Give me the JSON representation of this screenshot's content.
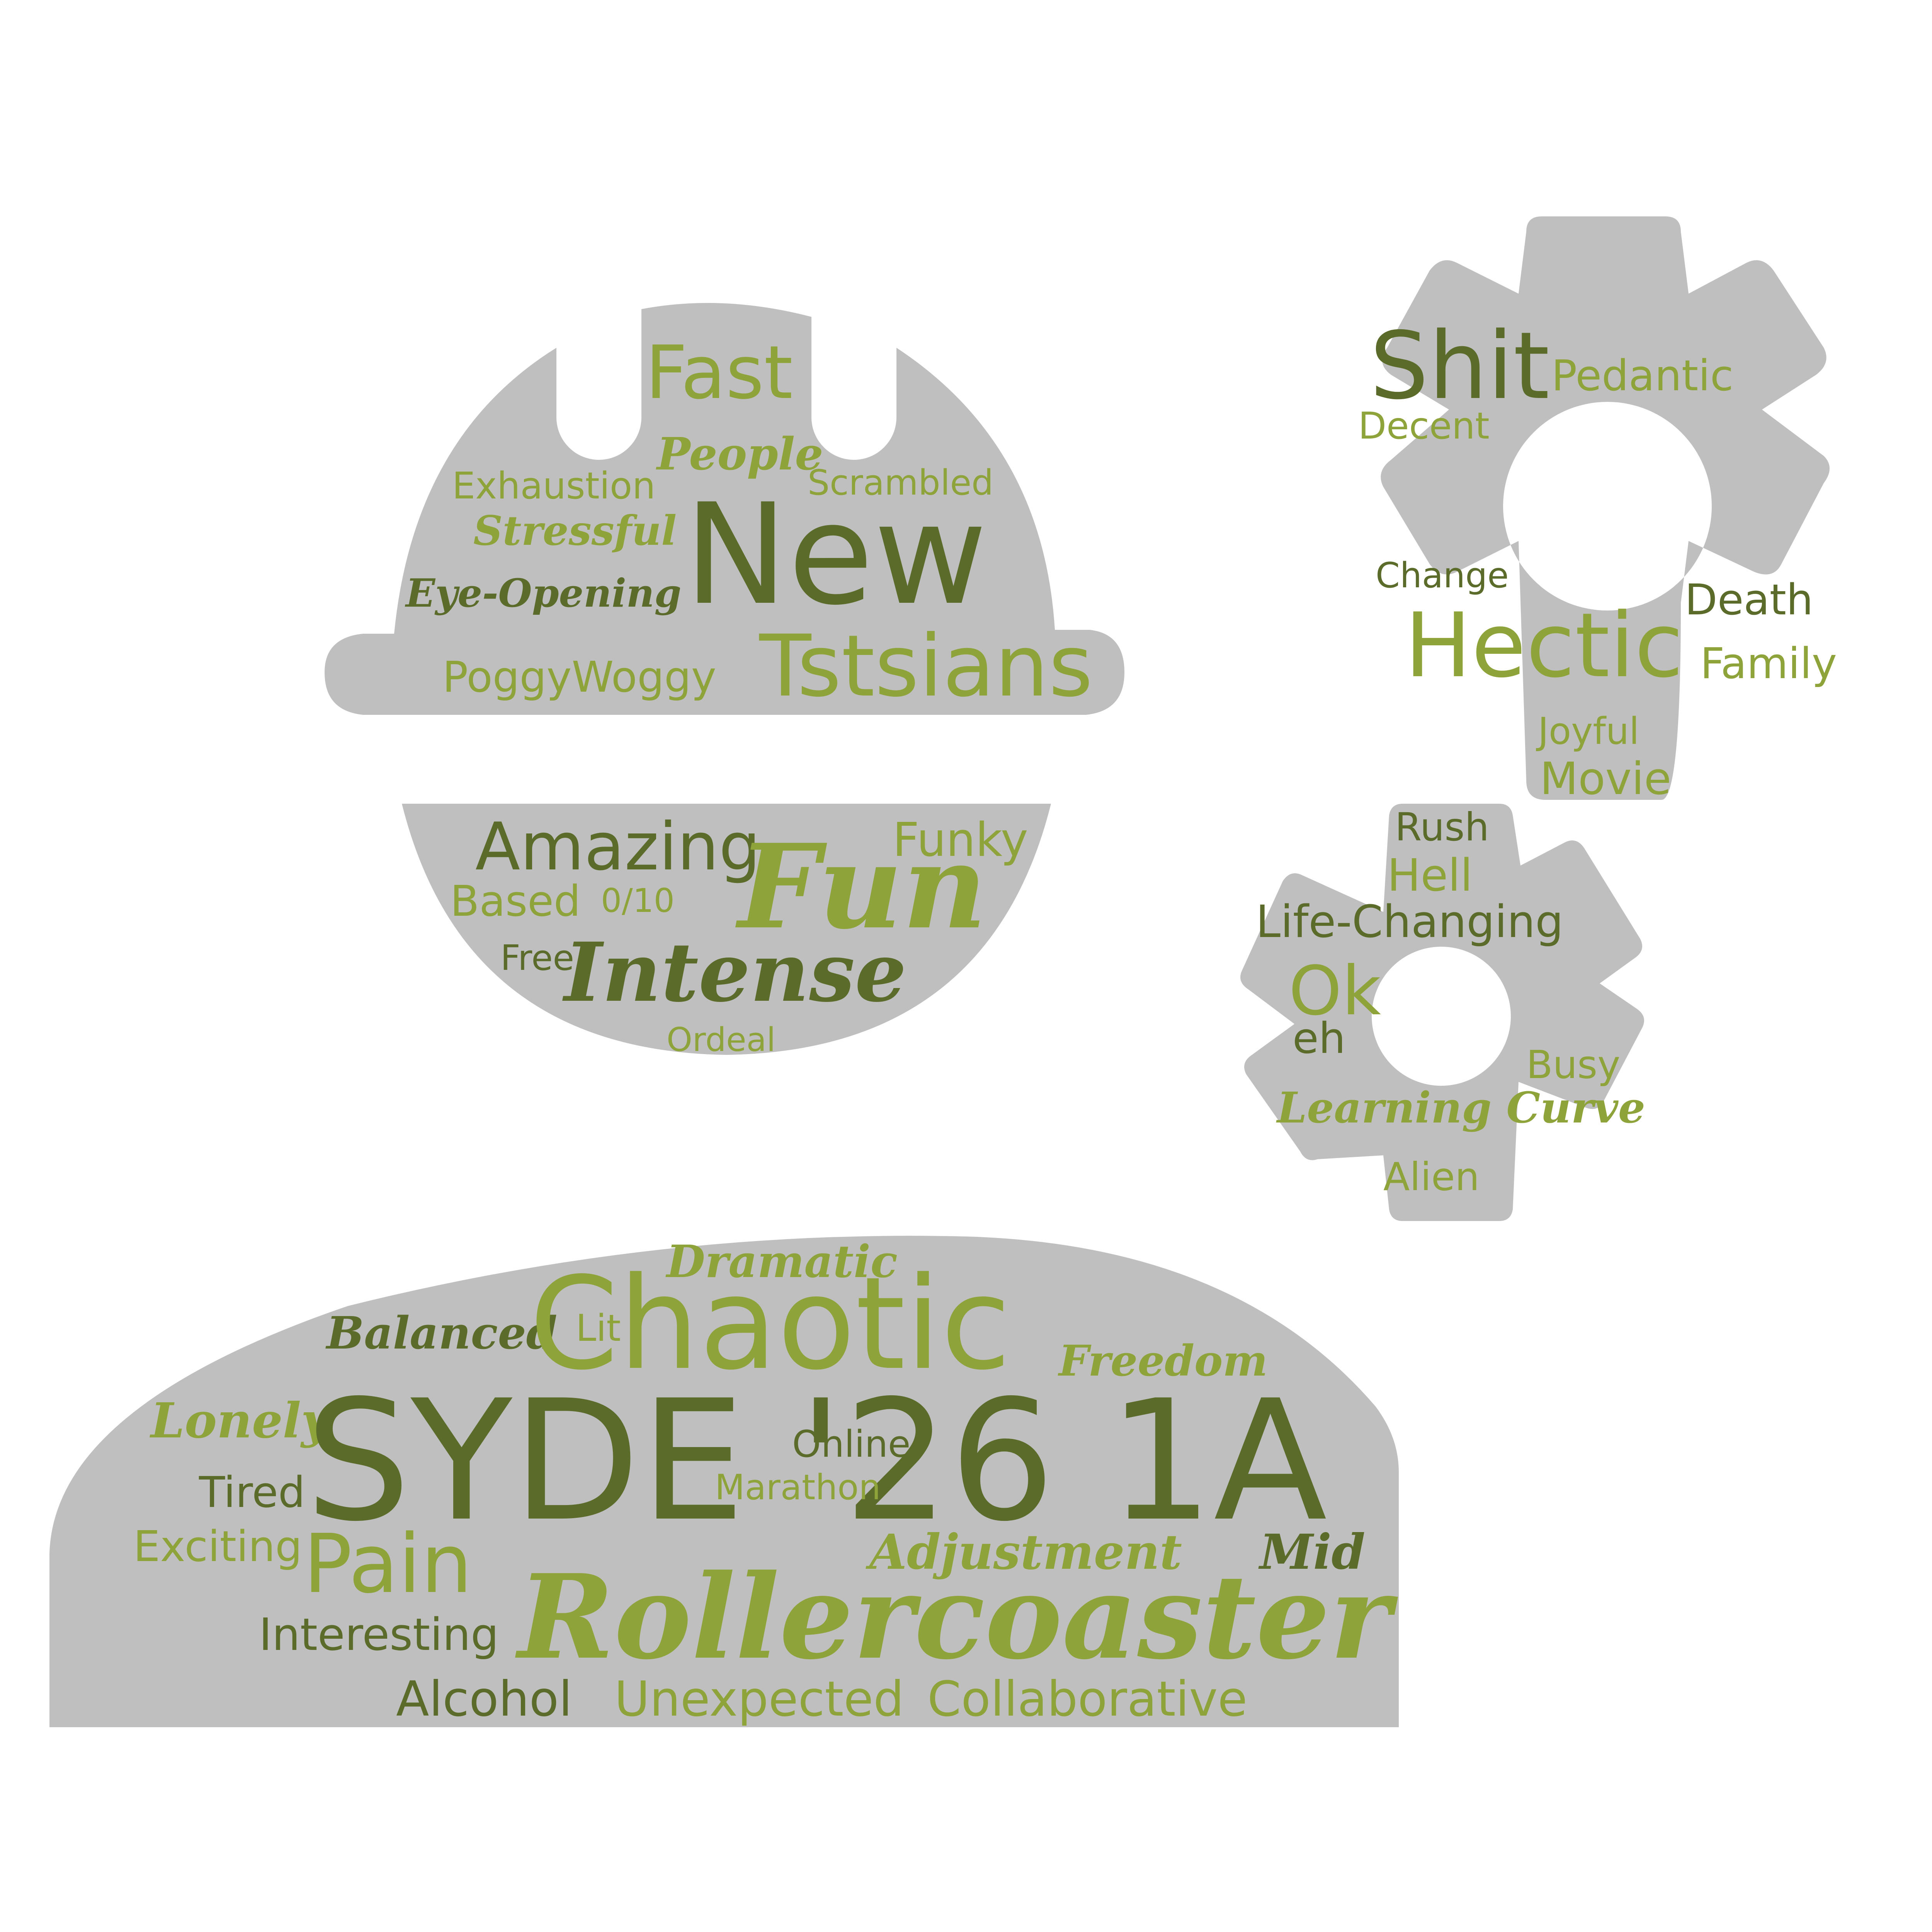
{
  "colors": {
    "background": "#ffffff",
    "shape": "#bfbfbf",
    "dark_green": "#5a6b2a",
    "light_green": "#8ea33a"
  },
  "clouds": {
    "helmet": {
      "words": [
        {
          "text": "Fast",
          "tone": "light",
          "style": "sans"
        },
        {
          "text": "People",
          "tone": "light",
          "style": "script"
        },
        {
          "text": "Exhaustion",
          "tone": "light",
          "style": "sans"
        },
        {
          "text": "Scrambled",
          "tone": "light",
          "style": "sans"
        },
        {
          "text": "Stressful",
          "tone": "light",
          "style": "script"
        },
        {
          "text": "New",
          "tone": "dark",
          "style": "sans"
        },
        {
          "text": "Eye-Opening",
          "tone": "dark",
          "style": "script"
        },
        {
          "text": "PoggyWoggy",
          "tone": "light",
          "style": "sans"
        },
        {
          "text": "Tstsians",
          "tone": "light",
          "style": "sans"
        }
      ]
    },
    "bowl": {
      "words": [
        {
          "text": "Amazing",
          "tone": "dark",
          "style": "sans"
        },
        {
          "text": "Fun",
          "tone": "light",
          "style": "script"
        },
        {
          "text": "Funky",
          "tone": "light",
          "style": "sans"
        },
        {
          "text": "Based",
          "tone": "light",
          "style": "sans"
        },
        {
          "text": "0/10",
          "tone": "light",
          "style": "sans"
        },
        {
          "text": "Free",
          "tone": "dark",
          "style": "sans"
        },
        {
          "text": "Intense",
          "tone": "dark",
          "style": "script"
        },
        {
          "text": "Ordeal",
          "tone": "light",
          "style": "sans"
        }
      ]
    },
    "gear_large": {
      "words": [
        {
          "text": "Shit",
          "tone": "dark",
          "style": "sans"
        },
        {
          "text": "Pedantic",
          "tone": "light",
          "style": "sans"
        },
        {
          "text": "Decent",
          "tone": "light",
          "style": "sans"
        },
        {
          "text": "Change",
          "tone": "dark",
          "style": "sans"
        },
        {
          "text": "Death",
          "tone": "dark",
          "style": "sans"
        },
        {
          "text": "Hectic",
          "tone": "light",
          "style": "sans"
        },
        {
          "text": "Family",
          "tone": "light",
          "style": "sans"
        },
        {
          "text": "Joyful",
          "tone": "light",
          "style": "sans"
        },
        {
          "text": "Movie",
          "tone": "light",
          "style": "sans"
        }
      ]
    },
    "gear_small": {
      "words": [
        {
          "text": "Rush",
          "tone": "dark",
          "style": "sans"
        },
        {
          "text": "Hell",
          "tone": "light",
          "style": "sans"
        },
        {
          "text": "Life-Changing",
          "tone": "dark",
          "style": "sans"
        },
        {
          "text": "Ok",
          "tone": "light",
          "style": "sans"
        },
        {
          "text": "eh",
          "tone": "dark",
          "style": "sans"
        },
        {
          "text": "Busy",
          "tone": "light",
          "style": "sans"
        },
        {
          "text": "Learning Curve",
          "tone": "light",
          "style": "script"
        },
        {
          "text": "Alien",
          "tone": "light",
          "style": "sans"
        }
      ]
    },
    "dome": {
      "words": [
        {
          "text": "Dramatic",
          "tone": "light",
          "style": "script"
        },
        {
          "text": "Balanced",
          "tone": "dark",
          "style": "script"
        },
        {
          "text": "Lit",
          "tone": "light",
          "style": "sans"
        },
        {
          "text": "Chaotic",
          "tone": "light",
          "style": "sans"
        },
        {
          "text": "Freedom",
          "tone": "light",
          "style": "script"
        },
        {
          "text": "Lonely",
          "tone": "light",
          "style": "script"
        },
        {
          "text": "SYDE '26 1A",
          "tone": "dark",
          "style": "sans"
        },
        {
          "text": "Online",
          "tone": "dark",
          "style": "sans"
        },
        {
          "text": "Tired",
          "tone": "dark",
          "style": "sans"
        },
        {
          "text": "Marathon",
          "tone": "light",
          "style": "sans"
        },
        {
          "text": "Exciting",
          "tone": "light",
          "style": "sans"
        },
        {
          "text": "Pain",
          "tone": "light",
          "style": "sans"
        },
        {
          "text": "Adjustment",
          "tone": "light",
          "style": "script"
        },
        {
          "text": "Mid",
          "tone": "dark",
          "style": "script"
        },
        {
          "text": "Interesting",
          "tone": "dark",
          "style": "sans"
        },
        {
          "text": "Rollercoaster",
          "tone": "light",
          "style": "script"
        },
        {
          "text": "Alcohol",
          "tone": "dark",
          "style": "sans"
        },
        {
          "text": "Unexpected",
          "tone": "light",
          "style": "sans"
        },
        {
          "text": "Collaborative",
          "tone": "light",
          "style": "sans"
        }
      ]
    }
  }
}
